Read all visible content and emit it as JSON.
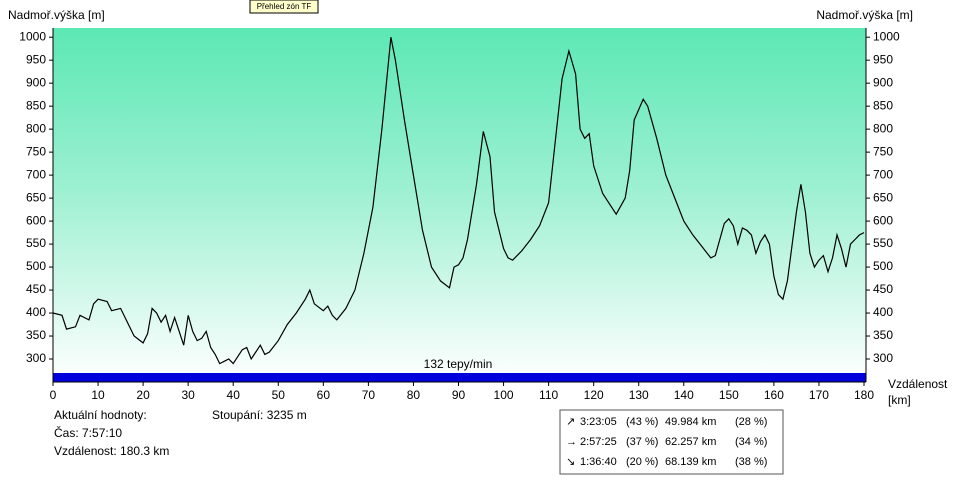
{
  "chart_data": {
    "type": "line",
    "y_label": "Nadmoř.výška [m]",
    "y2_label": "Nadmoř.výška [m]",
    "x_label": "Vzdálenost",
    "x_unit": "[km]",
    "button": "Přehled zón TF",
    "zone_label": "132 tepy/min",
    "line_color": "#000000",
    "zone_color": "#0000dd",
    "background_top": "#5ce8b4",
    "xlim": [
      0,
      180
    ],
    "ylim": [
      250,
      1020
    ],
    "xticks": [
      0,
      10,
      20,
      30,
      40,
      50,
      60,
      70,
      80,
      90,
      100,
      110,
      120,
      130,
      140,
      150,
      160,
      170,
      180
    ],
    "yticks": [
      300,
      350,
      400,
      450,
      500,
      550,
      600,
      650,
      700,
      750,
      800,
      850,
      900,
      950,
      1000
    ],
    "x": [
      0,
      2,
      3,
      5,
      6,
      8,
      9,
      10,
      12,
      13,
      15,
      16,
      18,
      20,
      21,
      22,
      23,
      24,
      25,
      26,
      27,
      28,
      29,
      30,
      31,
      32,
      33,
      34,
      35,
      36,
      37,
      38,
      39,
      40,
      42,
      43,
      44,
      46,
      47,
      48,
      50,
      52,
      54,
      56,
      57,
      58,
      60,
      61,
      62,
      63,
      65,
      67,
      69,
      71,
      73,
      75,
      76,
      78,
      80,
      82,
      84,
      86,
      88,
      89,
      90,
      91,
      92,
      94,
      95.5,
      97,
      98,
      100,
      101,
      102,
      104,
      106,
      108,
      110,
      111,
      113,
      114.5,
      116,
      117,
      118,
      119,
      120,
      122,
      124,
      125,
      127,
      128,
      129,
      131,
      132,
      134,
      136,
      138,
      140,
      142,
      144,
      146,
      147,
      148,
      149,
      150,
      151,
      152,
      153,
      154,
      155,
      156,
      157,
      158,
      159,
      160,
      161,
      162,
      163,
      165,
      166,
      167,
      168,
      169,
      170,
      171,
      172,
      173,
      174,
      175,
      176,
      177,
      178,
      179,
      180
    ],
    "values": [
      400,
      395,
      365,
      370,
      395,
      385,
      420,
      430,
      425,
      405,
      410,
      390,
      350,
      335,
      355,
      410,
      400,
      380,
      395,
      360,
      390,
      360,
      330,
      395,
      360,
      340,
      345,
      360,
      325,
      310,
      290,
      295,
      300,
      290,
      320,
      325,
      300,
      330,
      310,
      315,
      340,
      375,
      400,
      430,
      450,
      420,
      405,
      415,
      395,
      385,
      410,
      450,
      530,
      630,
      800,
      1000,
      950,
      820,
      700,
      580,
      500,
      470,
      455,
      500,
      505,
      520,
      560,
      680,
      795,
      740,
      620,
      540,
      520,
      515,
      535,
      560,
      590,
      640,
      730,
      910,
      970,
      920,
      800,
      780,
      790,
      720,
      660,
      630,
      615,
      650,
      710,
      820,
      865,
      850,
      780,
      700,
      650,
      600,
      570,
      545,
      520,
      525,
      560,
      595,
      605,
      590,
      550,
      585,
      580,
      570,
      530,
      555,
      570,
      550,
      480,
      440,
      430,
      470,
      620,
      680,
      620,
      530,
      500,
      515,
      525,
      490,
      520,
      570,
      540,
      500,
      550,
      560,
      570,
      575
    ]
  },
  "info": {
    "heading": "Aktuální hodnoty:",
    "time": "Čas: 7:57:10",
    "distance": "Vzdálenost: 180.3 km",
    "climb": "Stoupání: 3235 m"
  },
  "summary": [
    [
      "↗",
      "3:23:05",
      "(43 %)",
      "49.984 km",
      "(28 %)"
    ],
    [
      "→",
      "2:57:25",
      "(37 %)",
      "62.257 km",
      "(34 %)"
    ],
    [
      "↘",
      "1:36:40",
      "(20 %)",
      "68.139 km",
      "(38 %)"
    ]
  ]
}
